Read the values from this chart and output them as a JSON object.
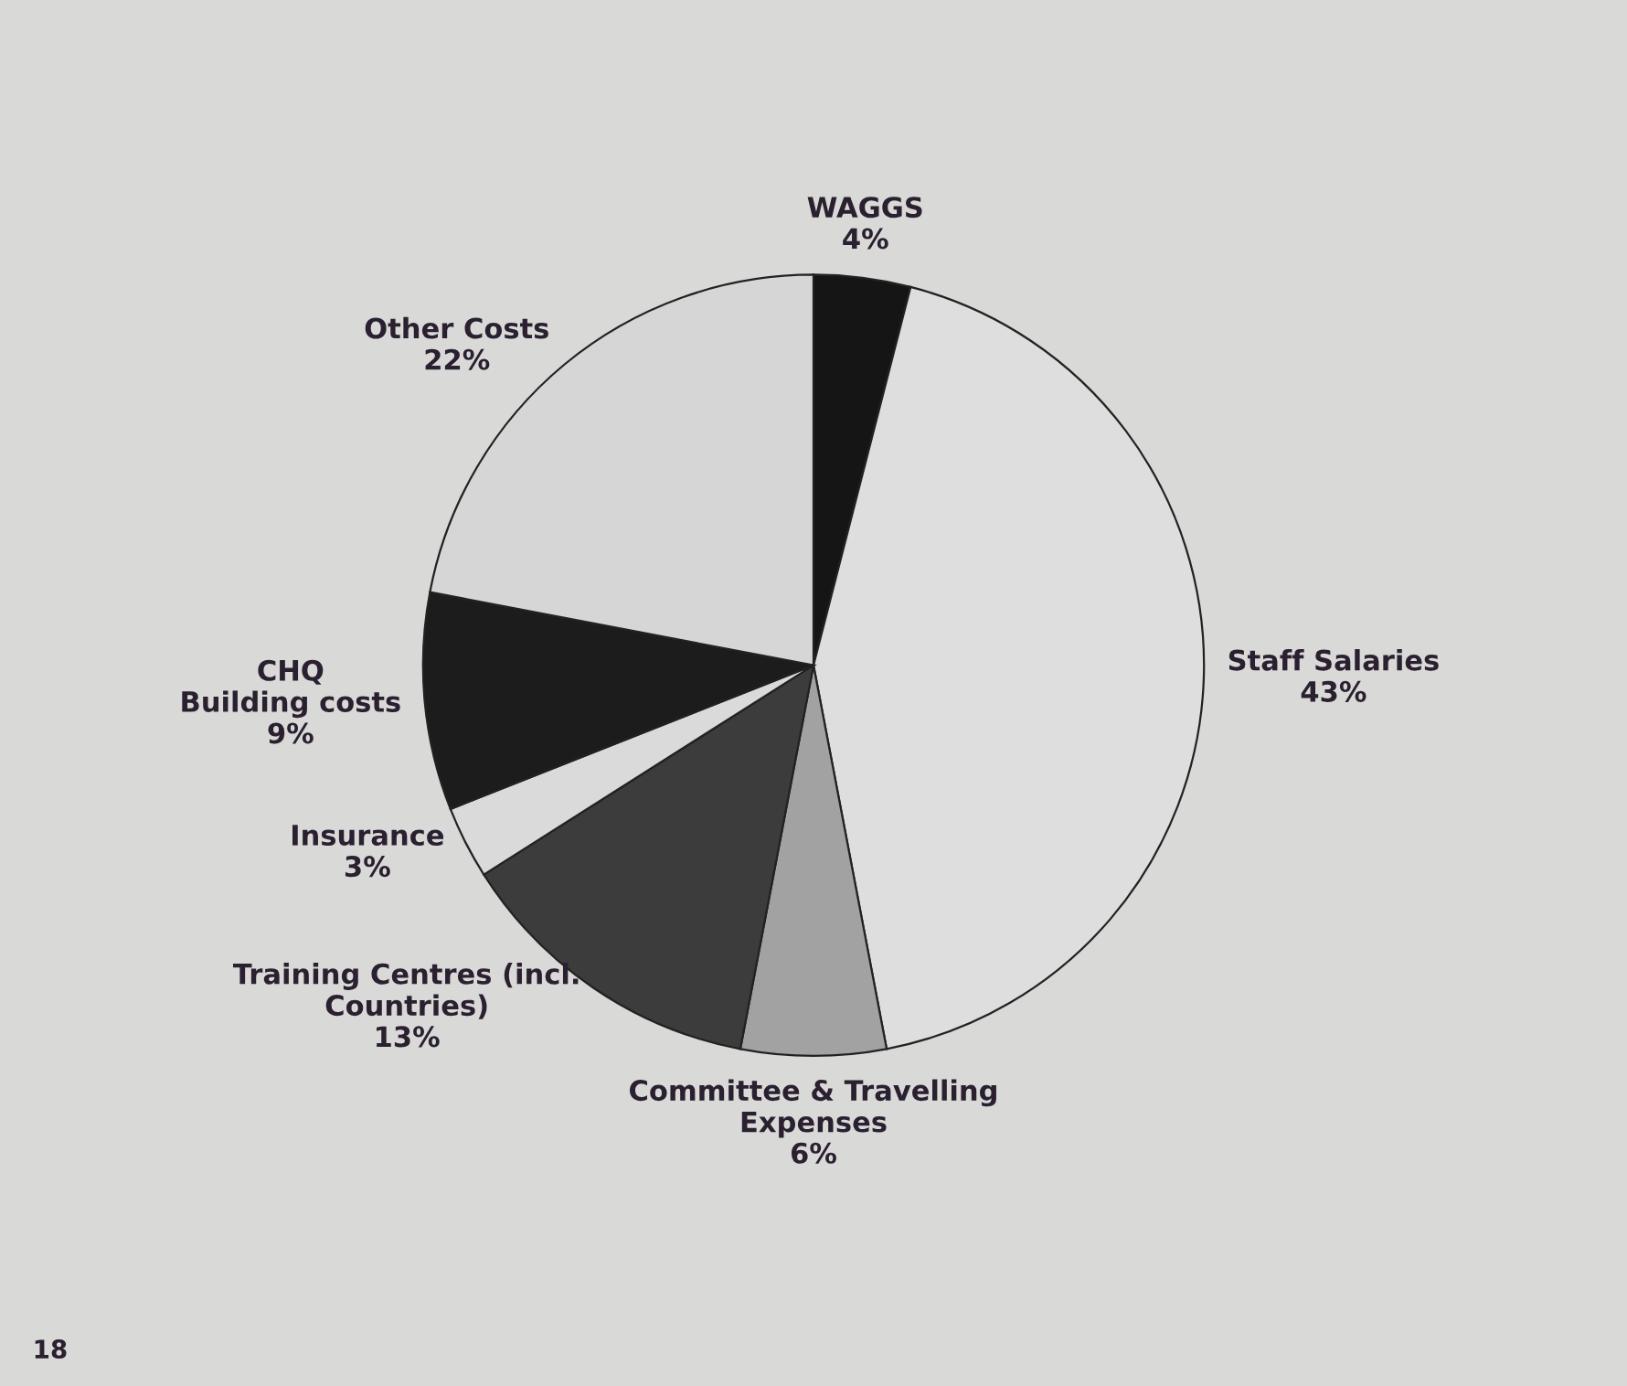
{
  "chart_data": {
    "type": "pie",
    "categories": [
      "WAGGS",
      "Staff Salaries",
      "Committee & Travelling\nExpenses",
      "Training Centres (incl.\nCountries)",
      "Insurance",
      "CHQ\nBuilding costs",
      "Other Costs"
    ],
    "values": [
      4,
      43,
      6,
      13,
      3,
      9,
      22
    ],
    "value_labels": [
      "4%",
      "43%",
      "6%",
      "13%",
      "3%",
      "9%",
      "22%"
    ],
    "colors": [
      "#151515",
      "#dedede",
      "#a2a2a2",
      "#3c3c3c",
      "#dadada",
      "#1c1c1c",
      "#d6d6d6"
    ],
    "annotations": [
      "18"
    ],
    "legend": false
  }
}
